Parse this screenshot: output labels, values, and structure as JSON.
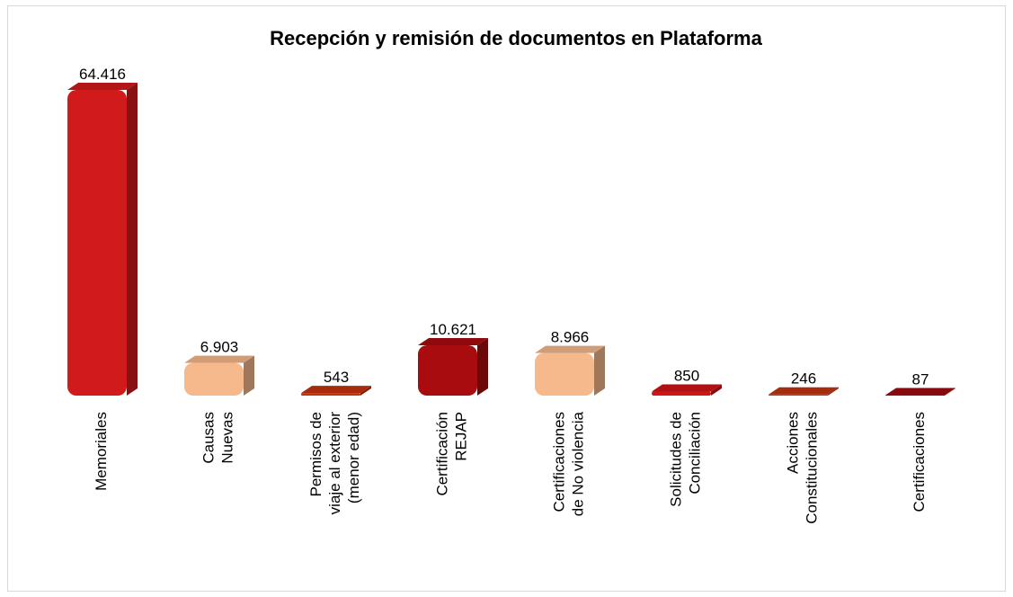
{
  "chart_data": {
    "type": "bar3d",
    "title": "Recepción y remisión de documentos en Plataforma",
    "categories": [
      "Memoriales",
      "Causas\nNuevas",
      "Permisos de\nviaje al exterior\n(menor edad)",
      "Certificación\nREJAP",
      "Certificaciones\nde No violencia",
      "Solicitudes de\nConciliación",
      "Acciones\nConstitucionales",
      "Certificaciones"
    ],
    "values": [
      64416,
      6903,
      543,
      10621,
      8966,
      850,
      246,
      87
    ],
    "value_labels": [
      "64.416",
      "6.903",
      "543",
      "10.621",
      "8.966",
      "850",
      "246",
      "87"
    ],
    "colors": [
      "#d11a1c",
      "#f5b98c",
      "#c4330f",
      "#a80c0e",
      "#f5b98c",
      "#cf1518",
      "#c4330f",
      "#a00b10"
    ]
  }
}
